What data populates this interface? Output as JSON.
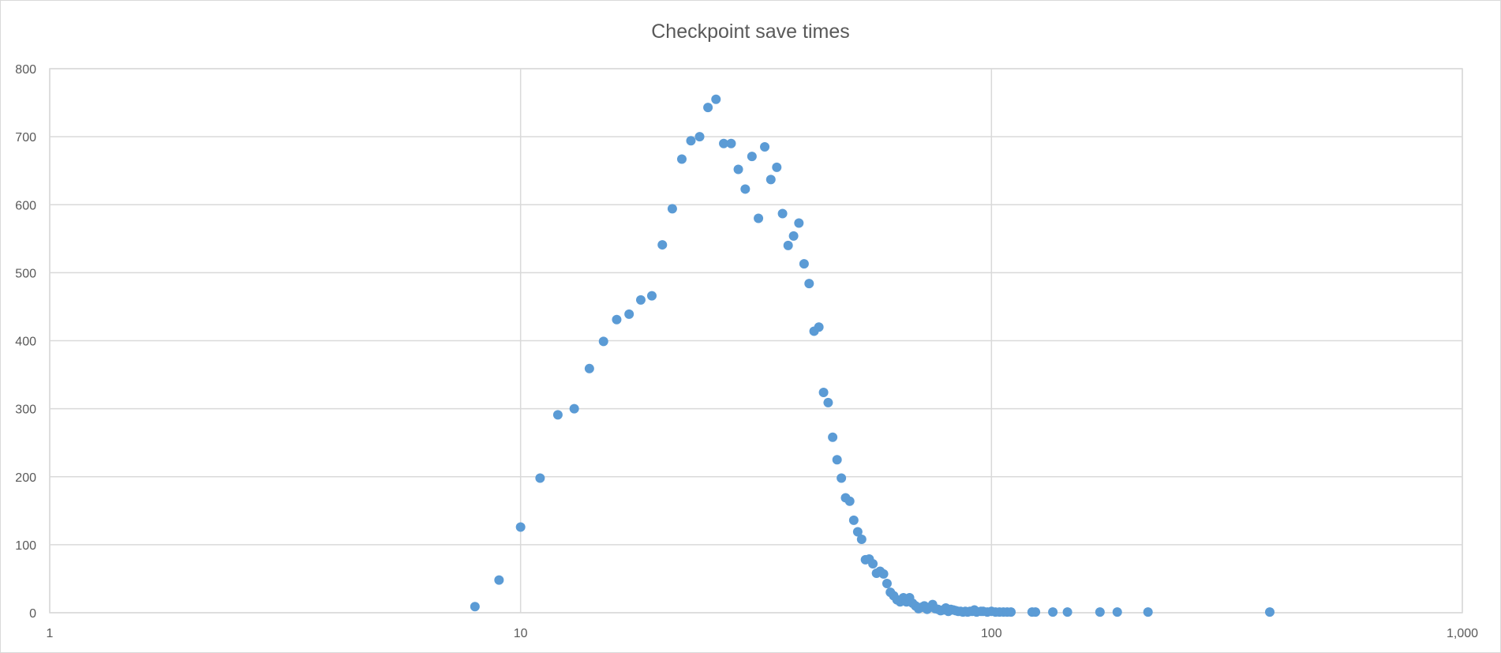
{
  "chart_data": {
    "type": "scatter",
    "title": "Checkpoint save times",
    "xlabel": "",
    "ylabel": "",
    "x_scale": "log",
    "xlim": [
      1,
      1000
    ],
    "ylim": [
      0,
      800
    ],
    "x_ticks": [
      1,
      10,
      100,
      1000
    ],
    "x_tick_labels": [
      "1",
      "10",
      "100",
      "1,000"
    ],
    "y_ticks": [
      0,
      100,
      200,
      300,
      400,
      500,
      600,
      700,
      800
    ],
    "y_tick_labels": [
      "0",
      "100",
      "200",
      "300",
      "400",
      "500",
      "600",
      "700",
      "800"
    ],
    "grid": true,
    "legend": "none",
    "series": [
      {
        "name": "Checkpoint save times",
        "color": "#5b9bd5",
        "points": [
          [
            8,
            9
          ],
          [
            9,
            48
          ],
          [
            10,
            126
          ],
          [
            11,
            198
          ],
          [
            12,
            291
          ],
          [
            13,
            300
          ],
          [
            14,
            359
          ],
          [
            15,
            399
          ],
          [
            16,
            431
          ],
          [
            17,
            439
          ],
          [
            18,
            460
          ],
          [
            19,
            466
          ],
          [
            20,
            541
          ],
          [
            21,
            594
          ],
          [
            22,
            667
          ],
          [
            23,
            694
          ],
          [
            24,
            700
          ],
          [
            25,
            743
          ],
          [
            26,
            755
          ],
          [
            27,
            690
          ],
          [
            28,
            690
          ],
          [
            29,
            652
          ],
          [
            30,
            623
          ],
          [
            31,
            671
          ],
          [
            32,
            580
          ],
          [
            33,
            685
          ],
          [
            34,
            637
          ],
          [
            35,
            655
          ],
          [
            36,
            587
          ],
          [
            37,
            540
          ],
          [
            38,
            554
          ],
          [
            39,
            573
          ],
          [
            40,
            513
          ],
          [
            41,
            484
          ],
          [
            42,
            414
          ],
          [
            43,
            420
          ],
          [
            44,
            324
          ],
          [
            45,
            309
          ],
          [
            46,
            258
          ],
          [
            47,
            225
          ],
          [
            48,
            198
          ],
          [
            49,
            169
          ],
          [
            50,
            164
          ],
          [
            51,
            136
          ],
          [
            52,
            119
          ],
          [
            53,
            108
          ],
          [
            54,
            78
          ],
          [
            55,
            79
          ],
          [
            56,
            72
          ],
          [
            57,
            58
          ],
          [
            58,
            61
          ],
          [
            59,
            57
          ],
          [
            60,
            43
          ],
          [
            61,
            30
          ],
          [
            62,
            25
          ],
          [
            63,
            19
          ],
          [
            64,
            16
          ],
          [
            65,
            22
          ],
          [
            66,
            16
          ],
          [
            67,
            22
          ],
          [
            68,
            14
          ],
          [
            69,
            10
          ],
          [
            70,
            6
          ],
          [
            71,
            8
          ],
          [
            72,
            10
          ],
          [
            73,
            5
          ],
          [
            74,
            8
          ],
          [
            75,
            12
          ],
          [
            76,
            6
          ],
          [
            77,
            5
          ],
          [
            78,
            3
          ],
          [
            79,
            4
          ],
          [
            80,
            7
          ],
          [
            81,
            2
          ],
          [
            82,
            5
          ],
          [
            83,
            4
          ],
          [
            84,
            3
          ],
          [
            85,
            2
          ],
          [
            86,
            2
          ],
          [
            87,
            1
          ],
          [
            88,
            2
          ],
          [
            89,
            1
          ],
          [
            90,
            2
          ],
          [
            91,
            2
          ],
          [
            92,
            4
          ],
          [
            93,
            1
          ],
          [
            95,
            2
          ],
          [
            96,
            2
          ],
          [
            98,
            1
          ],
          [
            100,
            2
          ],
          [
            102,
            1
          ],
          [
            104,
            1
          ],
          [
            106,
            1
          ],
          [
            108,
            1
          ],
          [
            110,
            1
          ],
          [
            122,
            1
          ],
          [
            124,
            1
          ],
          [
            135,
            1
          ],
          [
            145,
            1
          ],
          [
            170,
            1
          ],
          [
            185,
            1
          ],
          [
            215,
            1
          ],
          [
            390,
            1
          ]
        ]
      }
    ]
  }
}
